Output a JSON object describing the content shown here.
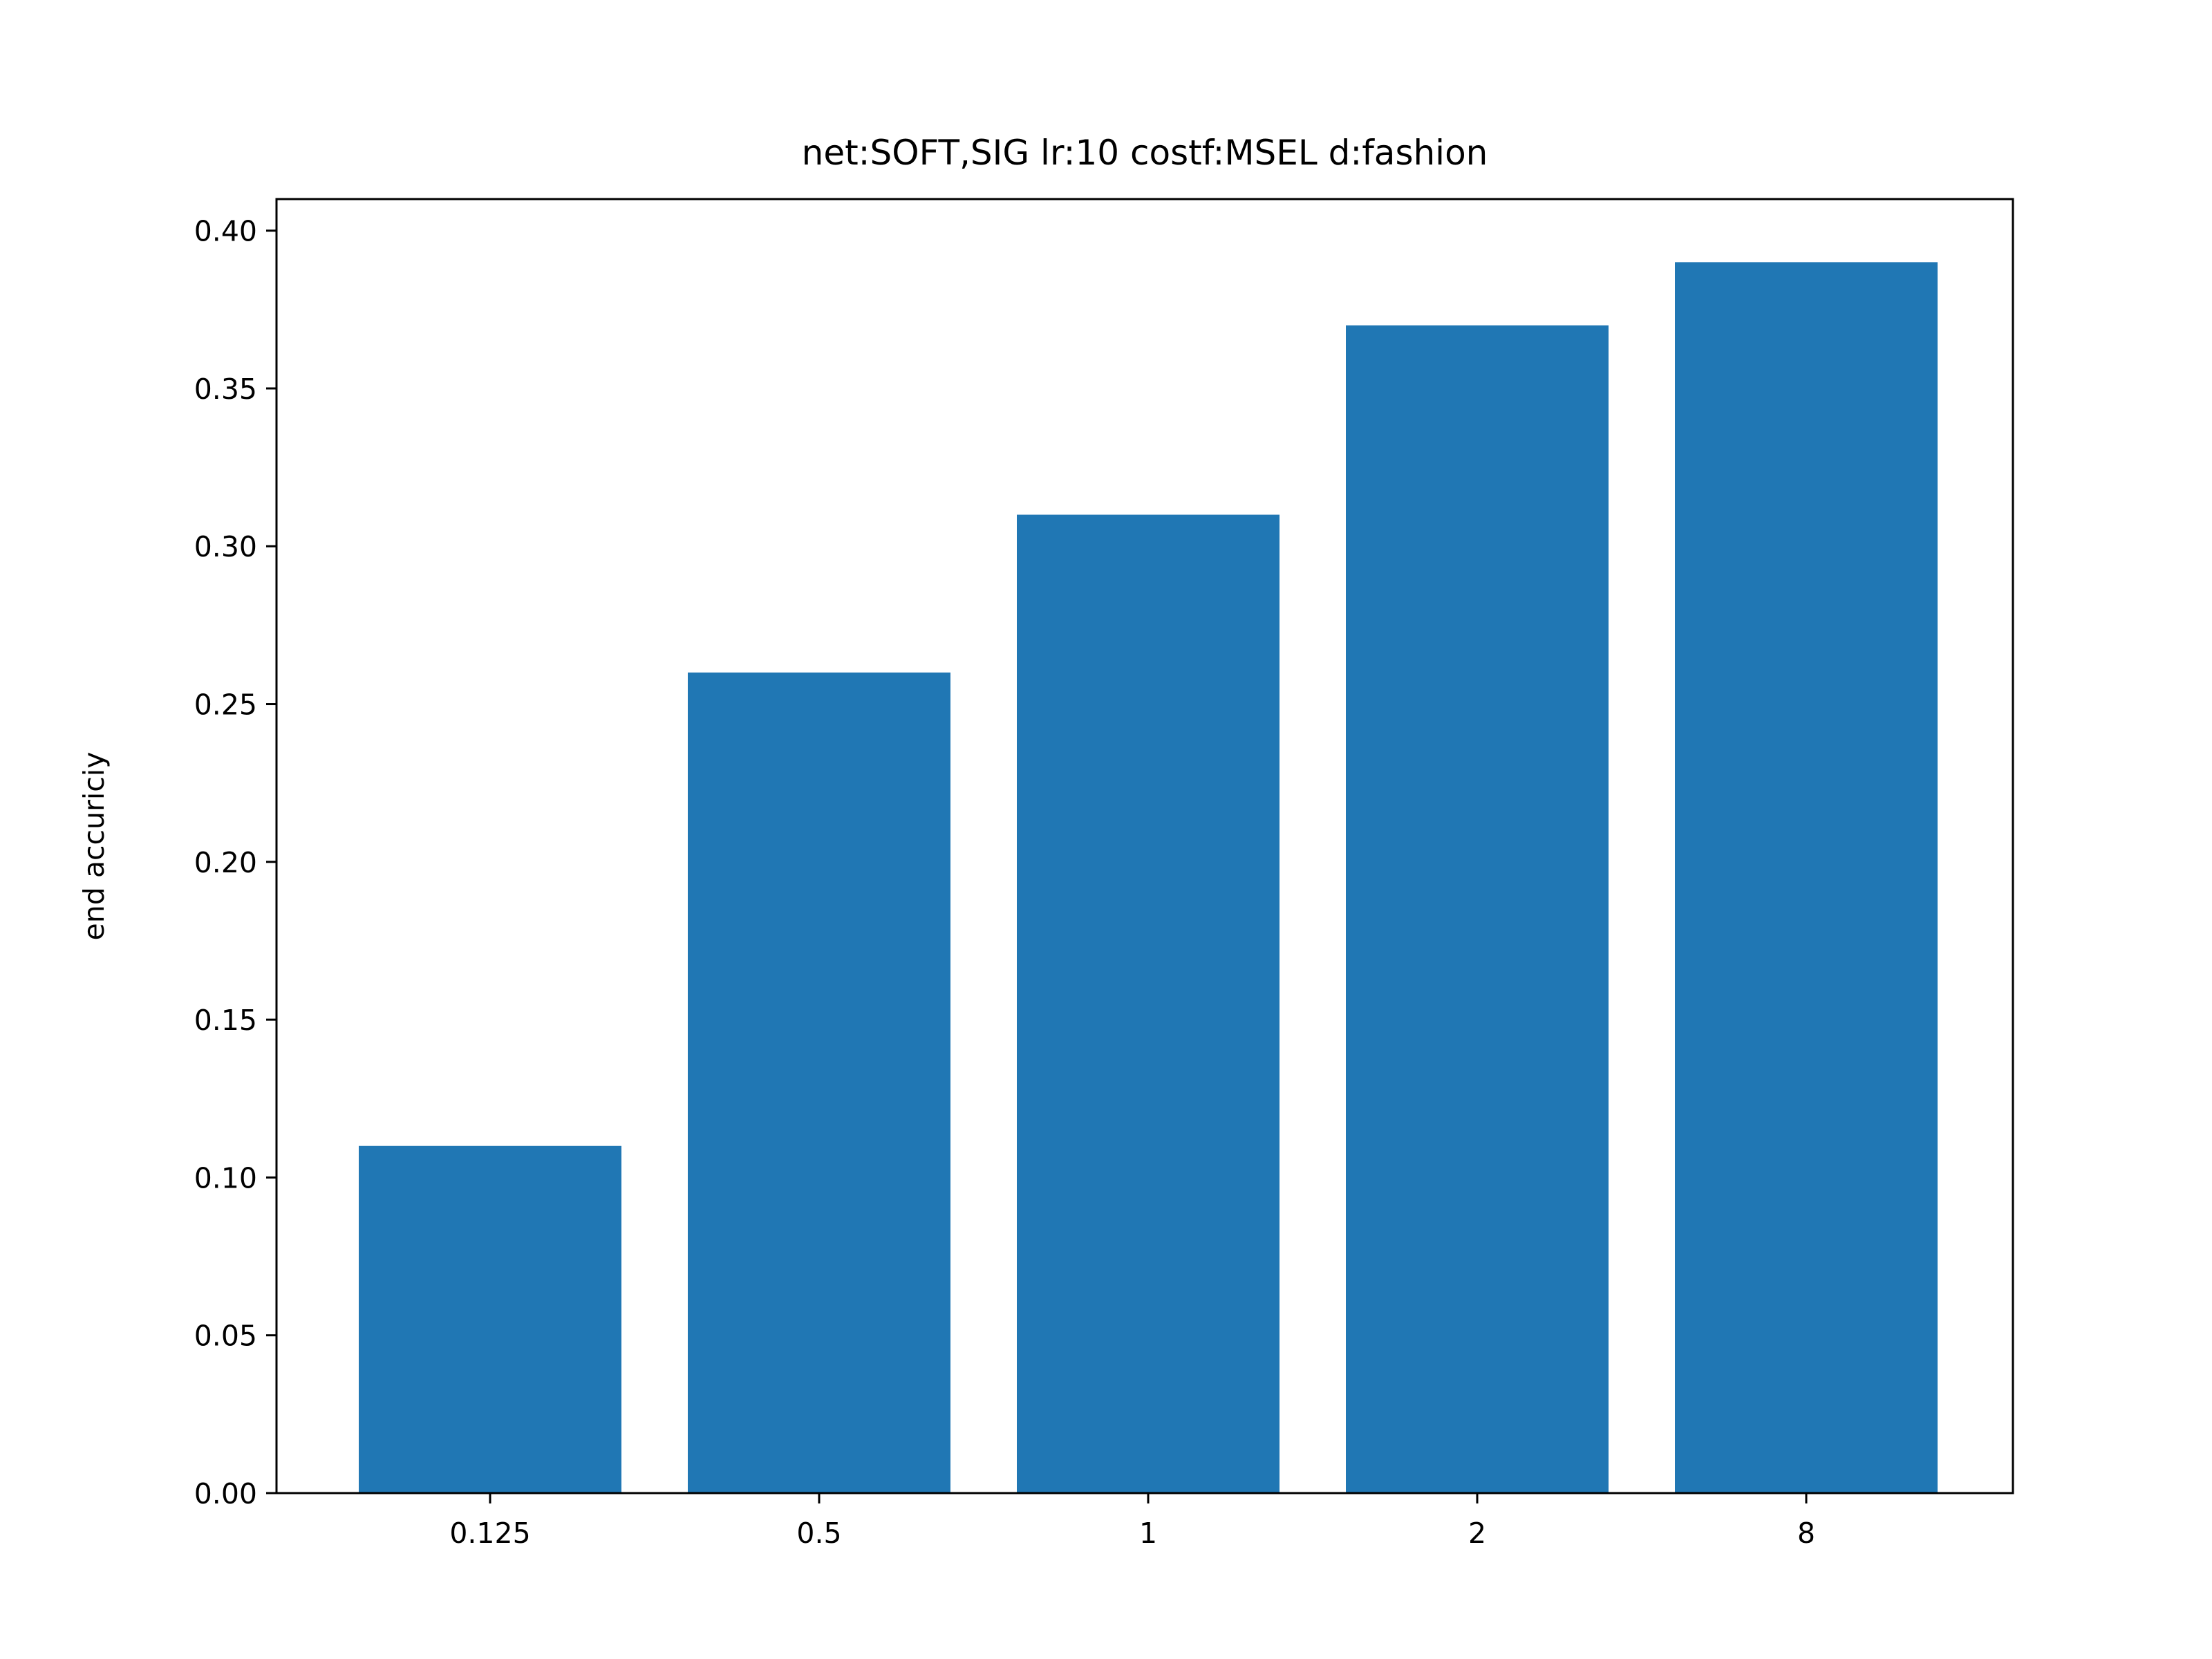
{
  "chart_data": {
    "type": "bar",
    "title": "net:SOFT,SIG lr:10 costf:MSEL d:fashion",
    "xlabel": "",
    "ylabel": "end accuriciy",
    "categories": [
      "0.125",
      "0.5",
      "1",
      "2",
      "8"
    ],
    "values": [
      0.11,
      0.26,
      0.31,
      0.37,
      0.39
    ],
    "ylim": [
      0,
      0.41
    ],
    "yticks": [
      "0.00",
      "0.05",
      "0.10",
      "0.15",
      "0.20",
      "0.25",
      "0.30",
      "0.35",
      "0.40"
    ],
    "bar_color": "#2077b4",
    "grid": false,
    "legend": "none"
  }
}
